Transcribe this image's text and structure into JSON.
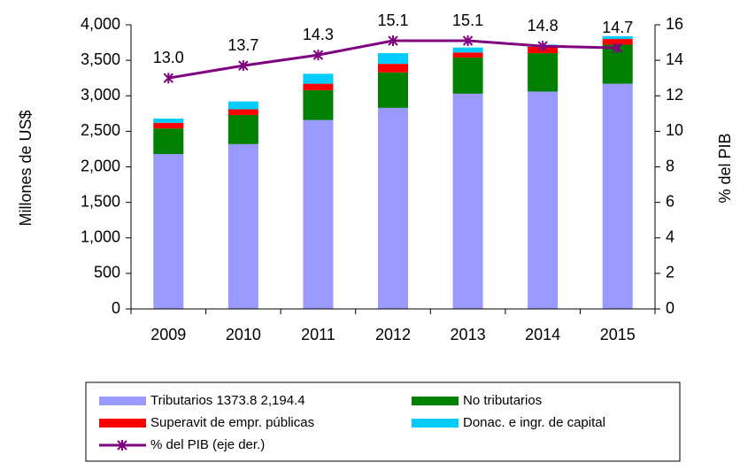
{
  "chart_data": {
    "type": "bar",
    "y_label": "Millones de US$",
    "y2_label": "% del PIB",
    "categories": [
      "2009",
      "2010",
      "2011",
      "2012",
      "2013",
      "2014",
      "2015"
    ],
    "series": [
      {
        "name": "Tributarios 1373.8 2,194.4",
        "color": "#9999ff",
        "values": [
          2180,
          2320,
          2660,
          2830,
          3030,
          3060,
          3170
        ]
      },
      {
        "name": "No tributarios",
        "color": "#008000",
        "values": [
          360,
          410,
          420,
          500,
          510,
          540,
          550
        ]
      },
      {
        "name": "Superavit de empr. públicas",
        "color": "#ff0000",
        "values": [
          80,
          80,
          90,
          120,
          70,
          90,
          80
        ]
      },
      {
        "name": "Donac. e ingr. de capital",
        "color": "#00ccff",
        "values": [
          60,
          110,
          140,
          150,
          70,
          30,
          40
        ]
      },
      {
        "name": "% del PIB (eje der.)",
        "type": "line",
        "axis": "y2",
        "color": "#800080",
        "values": [
          13.0,
          13.7,
          14.3,
          15.1,
          15.1,
          14.8,
          14.7
        ],
        "value_labels": [
          "13.0",
          "13.7",
          "14.3",
          "15.1",
          "15.1",
          "14.8",
          "14.7"
        ]
      }
    ],
    "ylim": [
      0,
      4000
    ],
    "yticks": [
      0,
      500,
      {
        "value": 1000,
        "label": "1,000"
      },
      {
        "value": 1500,
        "label": "1,500"
      },
      {
        "value": 2000,
        "label": "2,000"
      },
      {
        "value": 2500,
        "label": "2,500"
      },
      {
        "value": 3000,
        "label": "3,000"
      },
      {
        "value": 3500,
        "label": "3,500"
      },
      {
        "value": 4000,
        "label": "4,000"
      }
    ],
    "y2lim": [
      0,
      16
    ],
    "y2ticks": [
      0,
      2,
      4,
      6,
      8,
      10,
      12,
      14,
      16
    ],
    "stacked": true,
    "grid": false,
    "legend": "bottom"
  }
}
